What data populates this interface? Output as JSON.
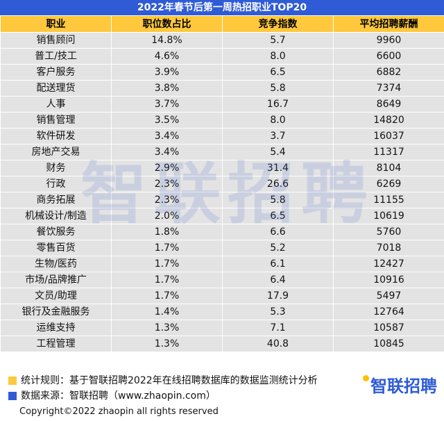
{
  "title": "2022年春节后第一周热招职业TOP20",
  "headers": [
    "职业",
    "职位数占比",
    "竞争指数",
    "平均招聘薪酬"
  ],
  "rows": [
    [
      "销售顾问",
      "14.8%",
      "5.7",
      "9960"
    ],
    [
      "普工/技工",
      "4.6%",
      "8.0",
      "6600"
    ],
    [
      "客户服务",
      "3.9%",
      "6.5",
      "6882"
    ],
    [
      "配送理货",
      "3.8%",
      "5.8",
      "7374"
    ],
    [
      "人事",
      "3.7%",
      "16.7",
      "8649"
    ],
    [
      "销售管理",
      "3.5%",
      "8.0",
      "14820"
    ],
    [
      "软件研发",
      "3.4%",
      "3.7",
      "16037"
    ],
    [
      "房地产交易",
      "3.4%",
      "5.4",
      "11317"
    ],
    [
      "财务",
      "2.9%",
      "31.4",
      "8104"
    ],
    [
      "行政",
      "2.3%",
      "26.6",
      "6269"
    ],
    [
      "商务拓展",
      "2.3%",
      "5.8",
      "11155"
    ],
    [
      "机械设计/制造",
      "2.0%",
      "6.5",
      "10619"
    ],
    [
      "餐饮服务",
      "1.8%",
      "6.6",
      "5760"
    ],
    [
      "零售百货",
      "1.7%",
      "5.2",
      "7018"
    ],
    [
      "生物/医药",
      "1.7%",
      "6.1",
      "12427"
    ],
    [
      "市场/品牌推广",
      "1.7%",
      "6.4",
      "10916"
    ],
    [
      "文员/助理",
      "1.7%",
      "17.9",
      "5497"
    ],
    [
      "银行及金融服务",
      "1.4%",
      "5.3",
      "12764"
    ],
    [
      "运维支持",
      "1.3%",
      "7.1",
      "10587"
    ],
    [
      "工程管理",
      "1.3%",
      "40.8",
      "10845"
    ]
  ],
  "watermark": "智联招聘",
  "footer": {
    "rule": "统计规则：基于智联招聘2022年在线招聘数据库的数据监测统计分析",
    "source": "数据来源：智联招聘（www.zhaopin.com）",
    "copyright": "Copyright©2022 zhaopin all rights reserved",
    "brand": "智联招聘"
  },
  "colors": {
    "title_bg": "#2f5bd6",
    "header_bg": "#ffc83d",
    "row_bg": "#e3e3e3",
    "legend_yellow": "#ffc83d",
    "legend_blue": "#2f5bd6"
  }
}
